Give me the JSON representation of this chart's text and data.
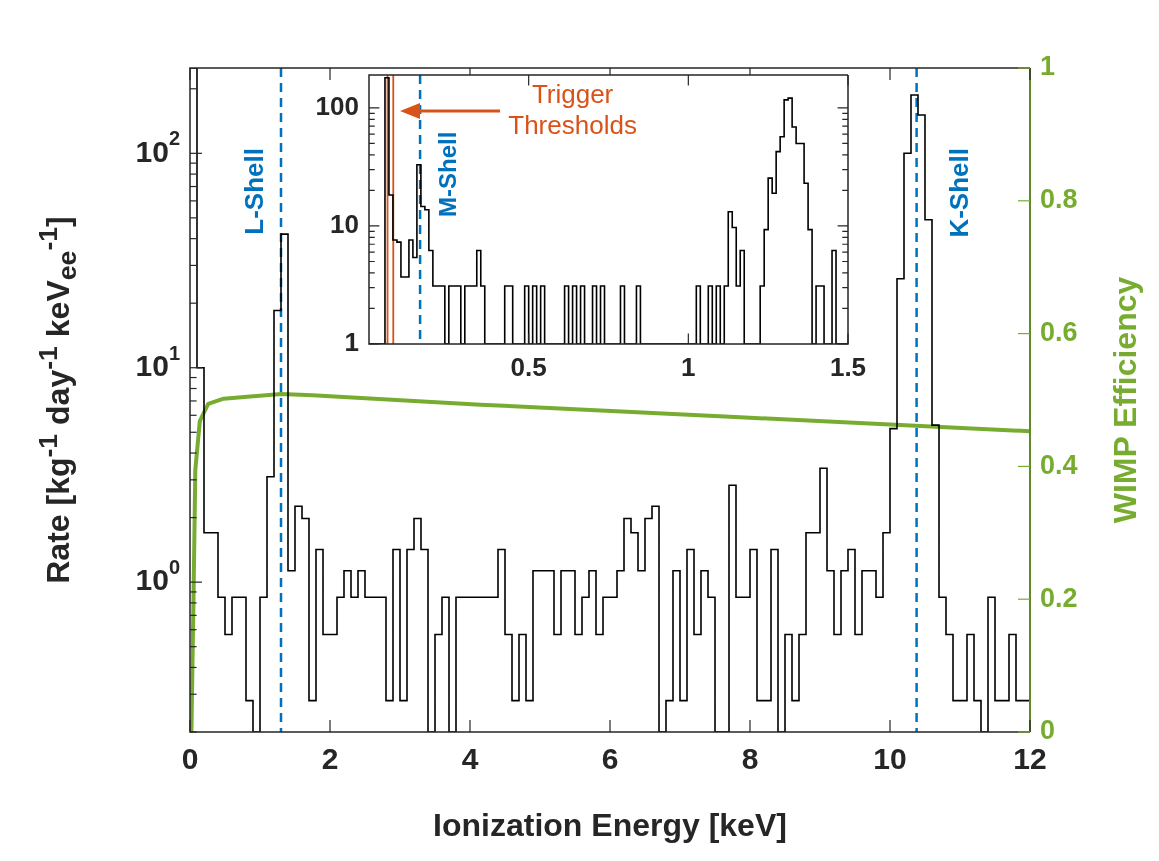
{
  "chart_data": [
    {
      "type": "histogram",
      "xlabel": "Ionization Energy [keV]",
      "ylabel": "Rate [kg$^{-1}$ day$^{-1}$ keV$_{ee}$$^{-1}$]",
      "y2label": "WIMP Efficiency",
      "log": "y",
      "bins": [
        0,
        0.1,
        0.2,
        0.3,
        0.4,
        0.5,
        0.6,
        0.7,
        0.8,
        0.9,
        1,
        1.1,
        1.2,
        1.3,
        1.4,
        1.5,
        1.6,
        1.7,
        1.8,
        1.9,
        2,
        2.1,
        2.2,
        2.3,
        2.4,
        2.5,
        2.6,
        2.7,
        2.8,
        2.9,
        3,
        3.1,
        3.2,
        3.3,
        3.4,
        3.5,
        3.6,
        3.7,
        3.8,
        3.9,
        4,
        4.1,
        4.2,
        4.3,
        4.4,
        4.5,
        4.6,
        4.7,
        4.8,
        4.9,
        5,
        5.1,
        5.2,
        5.3,
        5.4,
        5.5,
        5.6,
        5.7,
        5.8,
        5.9,
        6,
        6.1,
        6.2,
        6.3,
        6.4,
        6.5,
        6.6,
        6.7,
        6.8,
        6.9,
        7,
        7.1,
        7.2,
        7.3,
        7.4,
        7.5,
        7.6,
        7.7,
        7.8,
        7.9,
        8,
        8.1,
        8.2,
        8.3,
        8.4,
        8.5,
        8.6,
        8.7,
        8.8,
        8.9,
        9,
        9.1,
        9.2,
        9.3,
        9.4,
        9.5,
        9.6,
        9.7,
        9.8,
        9.9,
        10,
        10.1,
        10.2,
        10.3,
        10.4,
        10.5,
        10.6,
        10.7,
        10.8,
        10.9,
        11,
        11.1,
        11.2,
        11.3,
        11.4,
        11.5,
        11.6,
        11.7,
        11.8,
        11.9,
        12
      ],
      "series": [
        {
          "type": "histogram",
          "color": "#000000",
          "values": [
            250,
            10,
            1.7,
            1.7,
            0.85,
            0.57,
            0.85,
            0.85,
            0.28,
            null,
            0.85,
            3.1,
            18.5,
            42,
            1.13,
            2.26,
            1.98,
            0.28,
            1.42,
            0.57,
            0.57,
            0.85,
            1.13,
            0.85,
            1.13,
            0.85,
            0.85,
            0.85,
            0.28,
            1.42,
            0.28,
            1.42,
            1.98,
            1.42,
            null,
            0.57,
            0.85,
            null,
            0.85,
            0.85,
            0.85,
            0.85,
            0.85,
            0.85,
            1.42,
            0.57,
            0.28,
            0.57,
            0.28,
            1.13,
            1.13,
            1.13,
            0.57,
            1.13,
            1.13,
            0.57,
            0.85,
            1.13,
            0.57,
            0.85,
            0.85,
            1.13,
            1.98,
            1.7,
            1.13,
            1.98,
            2.26,
            null,
            0.28,
            1.13,
            0.28,
            1.42,
            0.57,
            1.13,
            0.85,
            null,
            null,
            2.83,
            0.85,
            0.85,
            1.42,
            0.28,
            0.28,
            1.42,
            null,
            0.57,
            0.28,
            0.57,
            1.7,
            1.7,
            3.4,
            1.13,
            0.57,
            1.13,
            1.42,
            0.57,
            1.13,
            1.13,
            0.85,
            1.7,
            5.2,
            26,
            100,
            187,
            151,
            49,
            5.4,
            0.85,
            0.57,
            0.28,
            0.28,
            0.57,
            0.28,
            null,
            0.85,
            0.28,
            0.28,
            0.57,
            0.28,
            0.28
          ]
        },
        {
          "type": "line",
          "axis": "y2",
          "color": "#77ac30",
          "x": [
            0.02,
            0.05,
            0.076,
            0.14,
            0.26,
            0.48,
            1.3,
            1.75,
            4.15,
            7.86,
            12
          ],
          "values": [
            0,
            0.2,
            0.395,
            0.468,
            0.494,
            0.502,
            0.509,
            0.507,
            0.493,
            0.474,
            0.453
          ]
        }
      ],
      "xlim": [
        0,
        12
      ],
      "xticks": [
        0,
        2,
        4,
        6,
        8,
        10,
        12
      ],
      "ylim": [
        0.2,
        250
      ],
      "yticks": [
        {
          "value": 0.2,
          "label": null
        },
        {
          "value": 0.3,
          "label": null
        },
        {
          "value": 0.4,
          "label": null
        },
        {
          "value": 0.5,
          "label": null
        },
        {
          "value": 0.6,
          "label": null
        },
        {
          "value": 0.7,
          "label": null
        },
        {
          "value": 0.8,
          "label": null
        },
        {
          "value": 0.9,
          "label": null
        },
        {
          "value": 1,
          "label": "10$^{0}$"
        },
        {
          "value": 2,
          "label": null
        },
        {
          "value": 3,
          "label": null
        },
        {
          "value": 4,
          "label": null
        },
        {
          "value": 5,
          "label": null
        },
        {
          "value": 6,
          "label": null
        },
        {
          "value": 7,
          "label": null
        },
        {
          "value": 8,
          "label": null
        },
        {
          "value": 9,
          "label": null
        },
        {
          "value": 10,
          "label": "10$^{1}$"
        },
        {
          "value": 20,
          "label": null
        },
        {
          "value": 30,
          "label": null
        },
        {
          "value": 40,
          "label": null
        },
        {
          "value": 50,
          "label": null
        },
        {
          "value": 60,
          "label": null
        },
        {
          "value": 70,
          "label": null
        },
        {
          "value": 80,
          "label": null
        },
        {
          "value": 90,
          "label": null
        },
        {
          "value": 100,
          "label": "10$^{2}$"
        },
        {
          "value": 200,
          "label": null
        }
      ],
      "y2lim": [
        0,
        1
      ],
      "y2ticks": [
        0,
        0.2,
        0.4,
        0.6,
        0.8,
        1
      ],
      "ref_lines": [
        {
          "axis": "x",
          "value": 1.3,
          "label": "L-Shell",
          "color": "#0072bd",
          "line_style": "dashed"
        },
        {
          "axis": "x",
          "value": 10.38,
          "label": "K-Shell",
          "color": "#0072bd",
          "line_style": "dashed"
        }
      ]
    },
    {
      "type": "histogram",
      "log": "y",
      "bins": [
        0,
        0.0125,
        0.025,
        0.0375,
        0.05,
        0.0625,
        0.075,
        0.0875,
        0.1,
        0.1125,
        0.125,
        0.1375,
        0.15,
        0.1625,
        0.175,
        0.1875,
        0.2,
        0.2125,
        0.225,
        0.2375,
        0.25,
        0.2625,
        0.275,
        0.2875,
        0.3,
        0.3125,
        0.325,
        0.3375,
        0.35,
        0.3625,
        0.375,
        0.3875,
        0.4,
        0.4125,
        0.425,
        0.4375,
        0.45,
        0.4625,
        0.475,
        0.4875,
        0.5,
        0.5125,
        0.525,
        0.5375,
        0.55,
        0.5625,
        0.575,
        0.5875,
        0.6,
        0.6125,
        0.625,
        0.6375,
        0.65,
        0.6625,
        0.675,
        0.6875,
        0.7,
        0.7125,
        0.725,
        0.7375,
        0.75,
        0.7625,
        0.775,
        0.7875,
        0.8,
        0.8125,
        0.825,
        0.8375,
        0.85,
        0.8625,
        0.875,
        0.8875,
        0.9,
        0.9125,
        0.925,
        0.9375,
        0.95,
        0.9625,
        0.975,
        0.9875,
        1,
        1.0125,
        1.025,
        1.0375,
        1.05,
        1.0625,
        1.075,
        1.0875,
        1.1,
        1.1125,
        1.125,
        1.1375,
        1.15,
        1.1625,
        1.175,
        1.1875,
        1.2,
        1.2125,
        1.225,
        1.2375,
        1.25,
        1.2625,
        1.275,
        1.2875,
        1.3,
        1.3125,
        1.325,
        1.3375,
        1.35,
        1.3625,
        1.375,
        1.3875,
        1.4,
        1.4125,
        1.425,
        1.4375,
        1.45,
        1.4625,
        1.475,
        1.4875,
        1.5
      ],
      "series": [
        {
          "type": "histogram",
          "color": "#000000",
          "values": [
            null,
            null,
            null,
            null,
            180,
            18.3,
            7.6,
            7.3,
            3.7,
            3.7,
            7.6,
            5.4,
            33,
            14.6,
            13.7,
            6.2,
            3.1,
            3.1,
            3.1,
            null,
            3.1,
            3.1,
            3.1,
            null,
            3.1,
            3.1,
            3.1,
            6.2,
            3.1,
            null,
            null,
            null,
            null,
            null,
            3.1,
            3.1,
            null,
            null,
            null,
            3.1,
            null,
            3.1,
            null,
            3.1,
            null,
            null,
            null,
            null,
            null,
            3.1,
            null,
            3.1,
            null,
            3.1,
            null,
            null,
            3.1,
            null,
            3.1,
            null,
            null,
            null,
            null,
            3.1,
            null,
            null,
            null,
            3.1,
            null,
            null,
            null,
            null,
            null,
            null,
            null,
            null,
            null,
            null,
            null,
            null,
            null,
            null,
            3.1,
            null,
            null,
            3.1,
            null,
            3.1,
            null,
            3.1,
            13.2,
            9.7,
            3.1,
            6.2,
            null,
            null,
            null,
            null,
            3.1,
            9.3,
            25.4,
            18.9,
            42.6,
            57,
            117,
            121,
            69,
            50,
            50,
            23,
            9.3,
            null,
            3.1,
            3.1,
            null,
            null,
            6.2,
            null,
            null,
            null
          ]
        }
      ],
      "xlim": [
        0,
        1.5
      ],
      "xticks": [
        0.5,
        1,
        1.5
      ],
      "ylim": [
        1,
        190
      ],
      "yticks": [
        1,
        {
          "value": 2,
          "label": null
        },
        {
          "value": 3,
          "label": null
        },
        {
          "value": 4,
          "label": null
        },
        {
          "value": 5,
          "label": null
        },
        {
          "value": 6,
          "label": null
        },
        {
          "value": 7,
          "label": null
        },
        {
          "value": 8,
          "label": null
        },
        {
          "value": 9,
          "label": null
        },
        10,
        {
          "value": 20,
          "label": null
        },
        {
          "value": 30,
          "label": null
        },
        {
          "value": 40,
          "label": null
        },
        {
          "value": 50,
          "label": null
        },
        {
          "value": 60,
          "label": null
        },
        {
          "value": 70,
          "label": null
        },
        {
          "value": 80,
          "label": null
        },
        {
          "value": 90,
          "label": null
        },
        100
      ],
      "ref_lines": [
        {
          "axis": "x",
          "value": 0.058,
          "color": "#d95319",
          "line_style": "solid"
        },
        {
          "axis": "x",
          "value": 0.076,
          "color": "#d95319",
          "line_style": "solid"
        },
        {
          "axis": "x",
          "value": 0.16,
          "label": "M-Shell",
          "color": "#0072bd",
          "line_style": "dashed"
        }
      ],
      "annotations": [
        "Trigger Thresholds"
      ]
    }
  ]
}
